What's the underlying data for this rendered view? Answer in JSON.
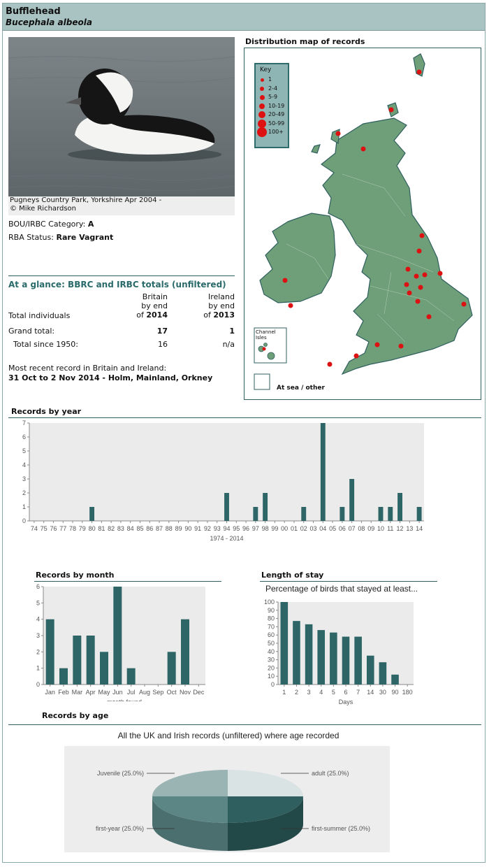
{
  "header": {
    "name": "Bufflehead",
    "latin": "Bucephala albeola"
  },
  "photo": {
    "caption_line1": "Pugneys Country Park, Yorkshire Apr 2004 -",
    "caption_line2": "© Mike Richardson"
  },
  "status": {
    "category_label": "BOU/IRBC Category:",
    "category": "A",
    "rba_label": "RBA Status:",
    "rba": "Rare Vagrant"
  },
  "glance": {
    "title": "At a glance: BBRC and IRBC totals (unfiltered)",
    "col_britain": [
      "Britain",
      "by end",
      "of",
      "2014"
    ],
    "col_ireland": [
      "Ireland",
      "by end",
      "of",
      "2013"
    ],
    "rows": [
      {
        "label": "Total individuals",
        "britain": "",
        "ireland": ""
      },
      {
        "label": "Grand total:",
        "britain": "17",
        "ireland": "1"
      },
      {
        "label": "Total since 1950:",
        "britain": "16",
        "ireland": "n/a"
      }
    ],
    "recent_label": "Most recent record in Britain and Ireland:",
    "recent": "31 Oct to 2 Nov 2014 - Holm, Mainland, Orkney"
  },
  "map": {
    "title": "Distribution map of records",
    "key_title": "Key",
    "key": [
      "1",
      "2-4",
      "5-9",
      "10-19",
      "20-49",
      "50-99",
      "100+"
    ],
    "channel": [
      "Channel",
      "Isles"
    ],
    "sea": "At sea / other",
    "colors": {
      "land": "#6f9f78",
      "border": "#2f6b6b",
      "dot": "#d11"
    }
  },
  "chart_data": [
    {
      "type": "bar",
      "title": "Records by year",
      "xlabel": "1974 - 2014",
      "ylabel": "",
      "ylim": [
        0,
        7
      ],
      "categories": [
        "74",
        "75",
        "76",
        "77",
        "78",
        "79",
        "80",
        "81",
        "82",
        "83",
        "84",
        "85",
        "86",
        "87",
        "88",
        "89",
        "90",
        "91",
        "92",
        "93",
        "94",
        "95",
        "96",
        "97",
        "98",
        "99",
        "00",
        "01",
        "02",
        "03",
        "04",
        "05",
        "06",
        "07",
        "08",
        "09",
        "10",
        "11",
        "12",
        "13",
        "14"
      ],
      "values": [
        0,
        0,
        0,
        0,
        0,
        0,
        1,
        0,
        0,
        0,
        0,
        0,
        0,
        0,
        0,
        0,
        0,
        0,
        0,
        0,
        2,
        0,
        0,
        1,
        2,
        0,
        0,
        0,
        1,
        0,
        7,
        0,
        1,
        3,
        0,
        0,
        1,
        1,
        2,
        0,
        1
      ]
    },
    {
      "type": "bar",
      "title": "Records by month",
      "xlabel": "month found",
      "ylabel": "",
      "ylim": [
        0,
        6
      ],
      "categories": [
        "Jan",
        "Feb",
        "Mar",
        "Apr",
        "May",
        "Jun",
        "Jul",
        "Aug",
        "Sep",
        "Oct",
        "Nov",
        "Dec"
      ],
      "values": [
        4,
        1,
        3,
        3,
        2,
        6,
        1,
        0,
        0,
        2,
        4,
        0
      ]
    },
    {
      "type": "bar",
      "title": "Length of stay",
      "subtitle": "Percentage of birds that stayed at least...",
      "xlabel": "Days",
      "ylabel": "",
      "ylim": [
        0,
        100
      ],
      "categories": [
        "1",
        "2",
        "3",
        "4",
        "5",
        "6",
        "7",
        "14",
        "30",
        "90",
        "180"
      ],
      "values": [
        100,
        77,
        73,
        66,
        63,
        58,
        58,
        35,
        27,
        12,
        0
      ]
    },
    {
      "type": "pie",
      "title": "Records by age",
      "subtitle": "All the UK and Irish records (unfiltered) where age recorded",
      "slices": [
        {
          "label": "adult (25.0%)",
          "value": 25
        },
        {
          "label": "first-summer (25.0%)",
          "value": 25
        },
        {
          "label": "first-year (25.0%)",
          "value": 25
        },
        {
          "label": "Juvenile (25.0%)",
          "value": 25
        }
      ]
    }
  ],
  "colors": {
    "bar": "#2e6566",
    "plot_bg": "#ebebeb",
    "accent": "#2a6a6a"
  }
}
